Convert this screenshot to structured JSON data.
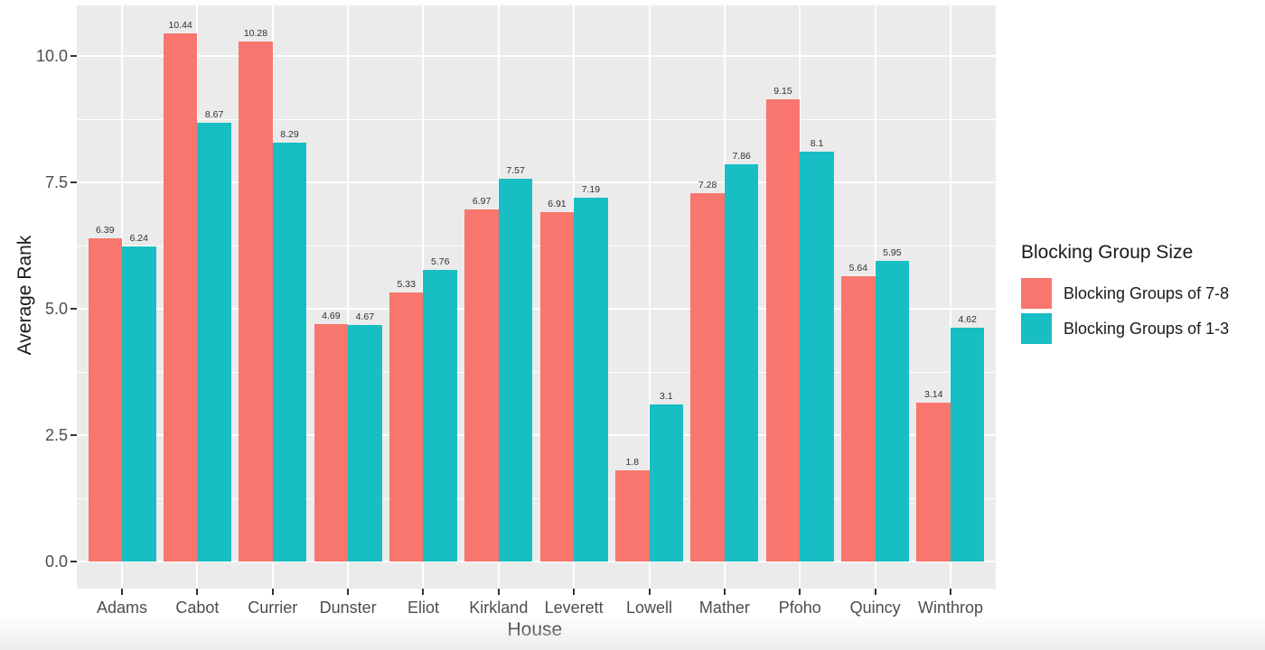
{
  "chart_data": {
    "type": "bar",
    "title": "",
    "xlabel": "House",
    "ylabel": "Average Rank",
    "categories": [
      "Adams",
      "Cabot",
      "Currier",
      "Dunster",
      "Eliot",
      "Kirkland",
      "Leverett",
      "Lowell",
      "Mather",
      "Pfoho",
      "Quincy",
      "Winthrop"
    ],
    "series": [
      {
        "name": "Blocking Groups of 7-8",
        "color": "#F8766D",
        "values": [
          6.39,
          10.44,
          10.28,
          4.69,
          5.33,
          6.97,
          6.91,
          1.8,
          7.28,
          9.15,
          5.64,
          3.14
        ]
      },
      {
        "name": "Blocking Groups of 1-3",
        "color": "#17BEC3",
        "values": [
          6.24,
          8.67,
          8.29,
          4.67,
          5.76,
          7.57,
          7.19,
          3.1,
          7.86,
          8.1,
          5.95,
          4.62
        ]
      }
    ],
    "legend_title": "Blocking Group Size",
    "legend_position": "right",
    "y_tick_labels": [
      "0.0",
      "2.5",
      "5.0",
      "7.5",
      "10.0"
    ],
    "y_tick_values": [
      0,
      2.5,
      5,
      7.5,
      10
    ],
    "y_minor_values": [
      1.25,
      3.75,
      6.25,
      8.75
    ],
    "ylim": [
      0,
      11.0
    ],
    "grid": "on",
    "panel_background": "#EBEBEB",
    "grid_color": "#FFFFFF",
    "bar_labels_shown": true
  }
}
